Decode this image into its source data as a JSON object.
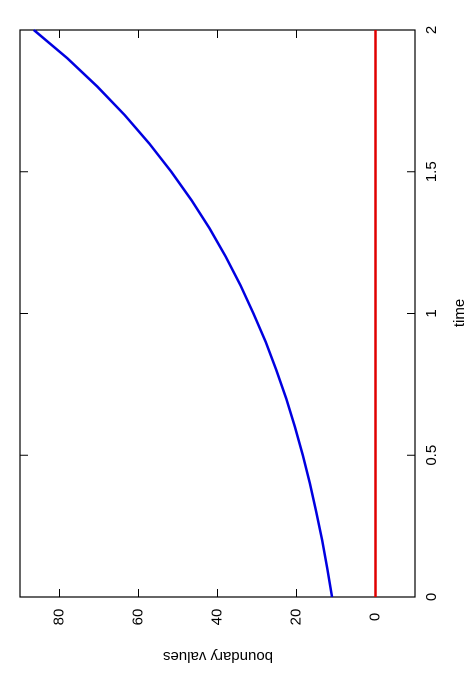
{
  "chart_data": {
    "type": "line",
    "x_label": "time",
    "y_label": "boundary values",
    "x": [
      0,
      0.1,
      0.2,
      0.3,
      0.4,
      0.5,
      0.6,
      0.7,
      0.8,
      0.9,
      1,
      1.1,
      1.2,
      1.3,
      1.4,
      1.5,
      1.6,
      1.7,
      1.8,
      1.9,
      2
    ],
    "series": [
      {
        "color": "#0000e0",
        "values": [
          11,
          12.2,
          13.5,
          15.0,
          16.6,
          18.4,
          20.4,
          22.6,
          25.1,
          27.8,
          30.9,
          34.2,
          37.9,
          42.0,
          46.6,
          51.7,
          57.3,
          63.5,
          70.4,
          78.0,
          86.5
        ]
      },
      {
        "color": "#e00000",
        "values": [
          0,
          0,
          0,
          0,
          0,
          0,
          0,
          0,
          0,
          0,
          0,
          0,
          0,
          0,
          0,
          0,
          0,
          0,
          0,
          0,
          0
        ]
      }
    ],
    "xlim": [
      0,
      2
    ],
    "ylim": [
      -10,
      90
    ],
    "xticks": [
      0,
      0.5,
      1,
      1.5,
      2
    ],
    "yticks": [
      0,
      20,
      40,
      60,
      80
    ]
  }
}
